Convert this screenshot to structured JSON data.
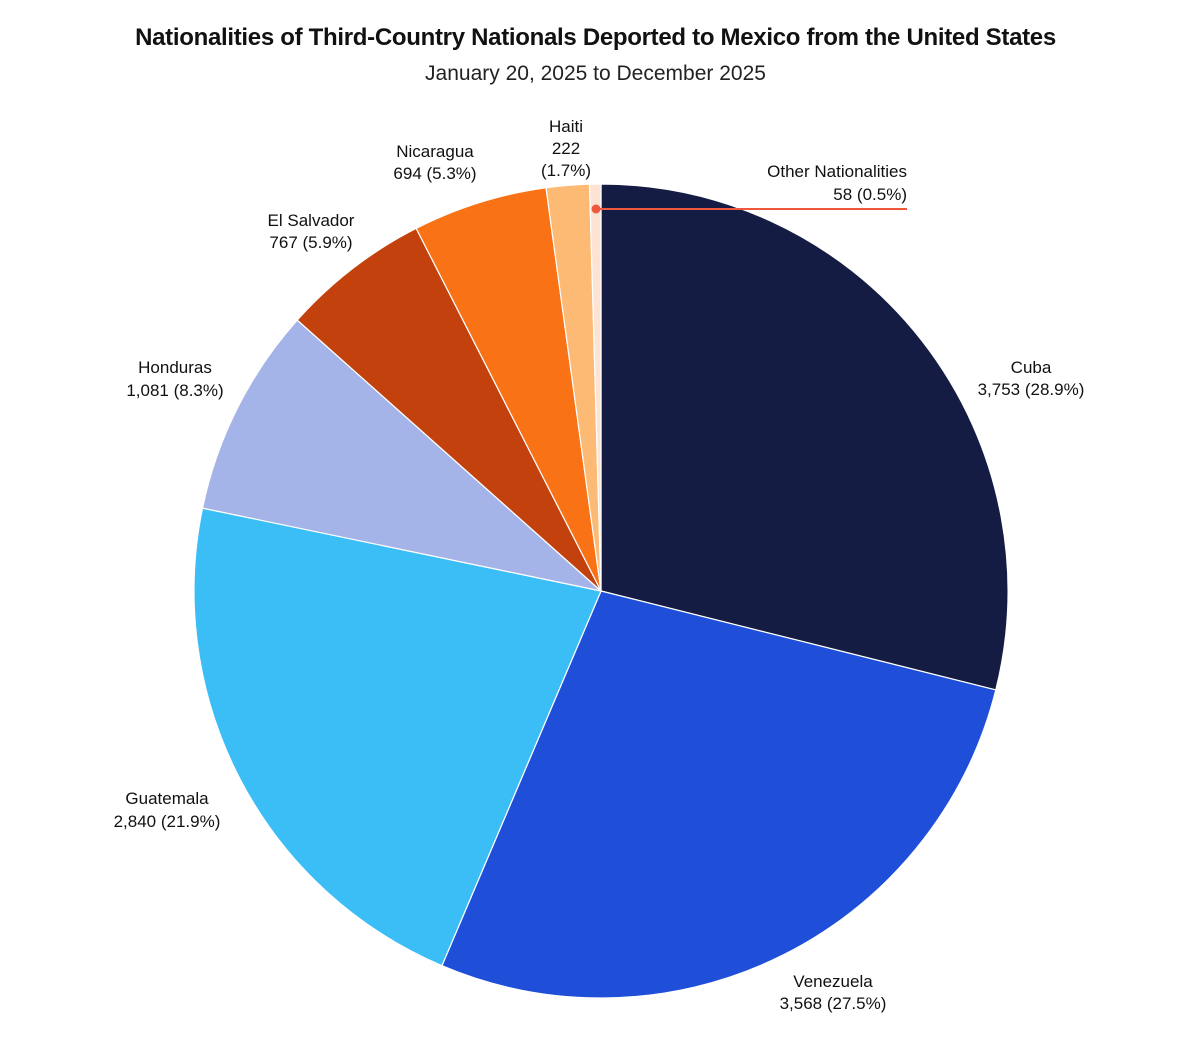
{
  "chart_data": {
    "type": "pie",
    "title": "Nationalities of Third-Country Nationals Deported to Mexico from the United States",
    "subtitle": "January 20, 2025 to December 2025",
    "start": "12 o'clock, clockwise",
    "slices": [
      {
        "name": "Cuba",
        "value": 3753,
        "value_label": "3,753",
        "percent": "28.9%",
        "color": "#141c44"
      },
      {
        "name": "Venezuela",
        "value": 3568,
        "value_label": "3,568",
        "percent": "27.5%",
        "color": "#1f4fd8"
      },
      {
        "name": "Guatemala",
        "value": 2840,
        "value_label": "2,840",
        "percent": "21.9%",
        "color": "#3bbdf6"
      },
      {
        "name": "Honduras",
        "value": 1081,
        "value_label": "1,081",
        "percent": "8.3%",
        "color": "#a5b4e8"
      },
      {
        "name": "El Salvador",
        "value": 767,
        "value_label": "767",
        "percent": "5.9%",
        "color": "#c2410c"
      },
      {
        "name": "Nicaragua",
        "value": 694,
        "value_label": "694",
        "percent": "5.3%",
        "color": "#f97316"
      },
      {
        "name": "Haiti",
        "value": 222,
        "value_label": "222",
        "percent": "1.7%",
        "color": "#fdba74"
      },
      {
        "name": "Other Nationalities",
        "value": 58,
        "value_label": "58",
        "percent": "0.5%",
        "color": "#fde3d3"
      }
    ],
    "leader_color": "#f0583e"
  }
}
